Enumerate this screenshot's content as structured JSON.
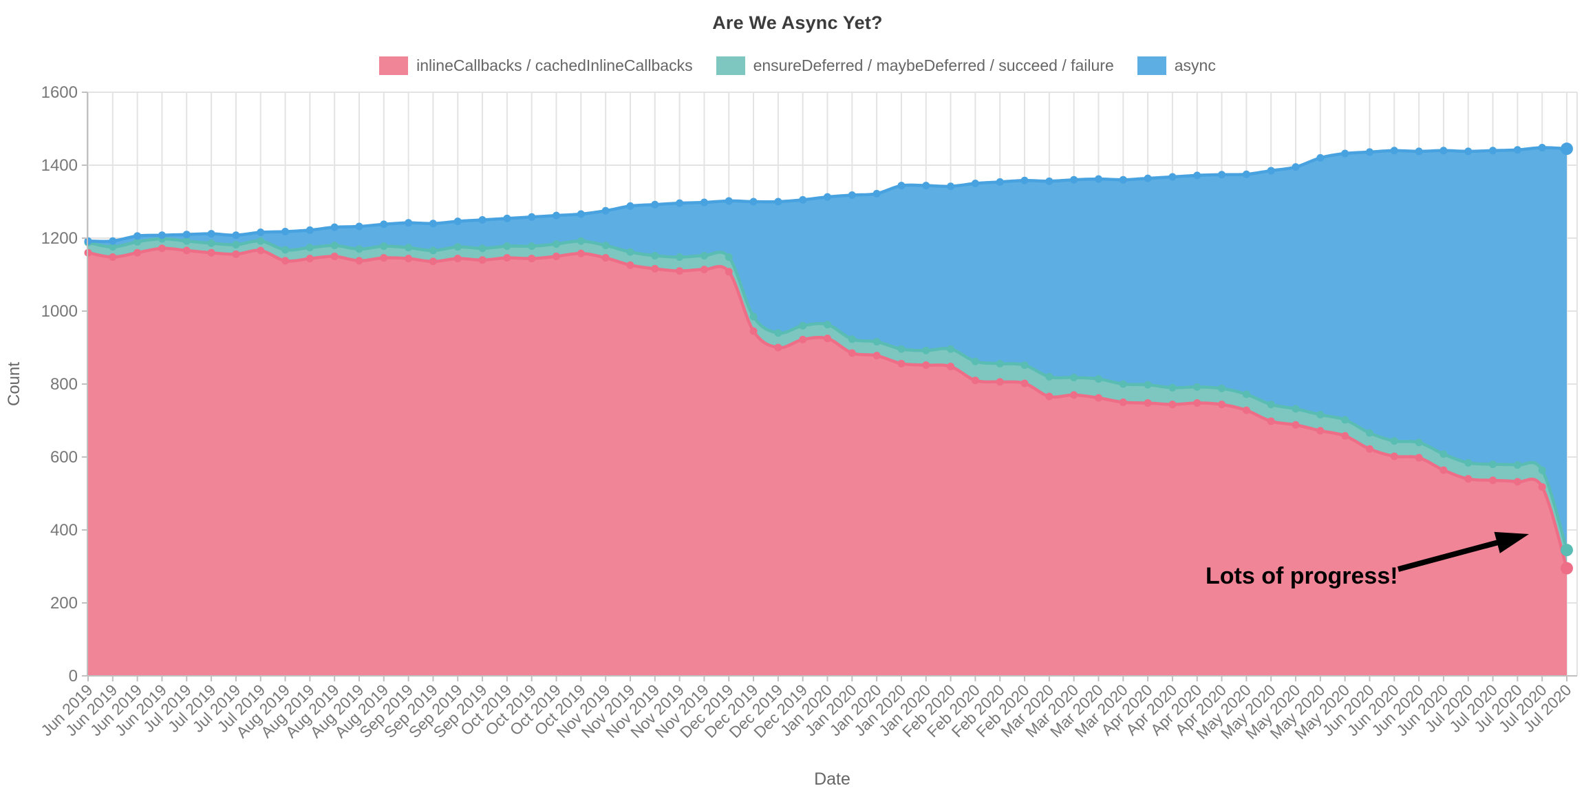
{
  "page": {
    "title": "Are We Async Yet?"
  },
  "axes": {
    "x": {
      "label": "Date"
    },
    "y": {
      "label": "Count",
      "ticks": [
        "0",
        "200",
        "400",
        "600",
        "800",
        "1000",
        "1200",
        "1400",
        "1600"
      ]
    }
  },
  "annotation": {
    "text": "Lots of progress!"
  },
  "legend": {
    "items": [
      {
        "label": "inlineCallbacks / cachedInlineCallbacks",
        "fill": "#f08598",
        "stroke": "#ee6e87"
      },
      {
        "label": "ensureDeferred / maybeDeferred / succeed / failure",
        "fill": "#7ec7c1",
        "stroke": "#5abdb3"
      },
      {
        "label": "async",
        "fill": "#5daee3",
        "stroke": "#47a2df"
      }
    ]
  },
  "colors": {
    "grid": "#e3e3e3",
    "axis_line": "#c0c0c0",
    "tick_text": "#777777",
    "axis_title_text": "#666666",
    "chart_title_text": "#3c3c3c",
    "annotation": "#000000",
    "background": "#ffffff"
  },
  "chart_data": {
    "type": "area",
    "stacked": true,
    "title": "Are We Async Yet?",
    "xlabel": "Date",
    "ylabel": "Count",
    "ylim": [
      0,
      1600
    ],
    "ytick_step": 200,
    "grid": true,
    "legend_position": "top",
    "point_markers": true,
    "categories": [
      "Jun 2019",
      "Jun 2019",
      "Jun 2019",
      "Jun 2019",
      "Jul 2019",
      "Jul 2019",
      "Jul 2019",
      "Jul 2019",
      "Aug 2019",
      "Aug 2019",
      "Aug 2019",
      "Aug 2019",
      "Aug 2019",
      "Sep 2019",
      "Sep 2019",
      "Sep 2019",
      "Sep 2019",
      "Oct 2019",
      "Oct 2019",
      "Oct 2019",
      "Oct 2019",
      "Nov 2019",
      "Nov 2019",
      "Nov 2019",
      "Nov 2019",
      "Nov 2019",
      "Dec 2019",
      "Dec 2019",
      "Dec 2019",
      "Dec 2019",
      "Jan 2020",
      "Jan 2020",
      "Jan 2020",
      "Jan 2020",
      "Jan 2020",
      "Feb 2020",
      "Feb 2020",
      "Feb 2020",
      "Feb 2020",
      "Mar 2020",
      "Mar 2020",
      "Mar 2020",
      "Mar 2020",
      "Apr 2020",
      "Apr 2020",
      "Apr 2020",
      "Apr 2020",
      "May 2020",
      "May 2020",
      "May 2020",
      "May 2020",
      "May 2020",
      "Jun 2020",
      "Jun 2020",
      "Jun 2020",
      "Jun 2020",
      "Jul 2020",
      "Jul 2020",
      "Jul 2020",
      "Jul 2020",
      "Jul 2020"
    ],
    "series": [
      {
        "name": "inlineCallbacks / cachedInlineCallbacks",
        "values": [
          1160,
          1148,
          1160,
          1172,
          1166,
          1160,
          1156,
          1166,
          1138,
          1144,
          1150,
          1138,
          1146,
          1144,
          1136,
          1144,
          1140,
          1146,
          1144,
          1150,
          1158,
          1146,
          1126,
          1116,
          1110,
          1114,
          1108,
          945,
          900,
          922,
          925,
          885,
          878,
          856,
          852,
          848,
          810,
          806,
          802,
          766,
          770,
          762,
          750,
          748,
          744,
          748,
          744,
          728,
          698,
          688,
          672,
          658,
          622,
          602,
          598,
          564,
          540,
          536,
          532,
          518,
          295
        ]
      },
      {
        "name": "ensureDeferred / maybeDeferred / succeed / failure",
        "values": [
          28,
          28,
          30,
          26,
          26,
          26,
          26,
          26,
          30,
          30,
          30,
          32,
          32,
          30,
          30,
          32,
          32,
          32,
          34,
          34,
          34,
          34,
          36,
          36,
          38,
          38,
          40,
          40,
          40,
          38,
          38,
          38,
          38,
          40,
          40,
          48,
          52,
          50,
          50,
          54,
          48,
          52,
          50,
          50,
          46,
          44,
          44,
          44,
          46,
          44,
          44,
          44,
          44,
          42,
          42,
          44,
          44,
          44,
          46,
          46,
          50
        ]
      },
      {
        "name": "async",
        "values": [
          4,
          16,
          16,
          10,
          18,
          26,
          26,
          24,
          50,
          48,
          50,
          62,
          60,
          68,
          74,
          70,
          78,
          76,
          80,
          78,
          74,
          95,
          126,
          140,
          148,
          146,
          154,
          315,
          360,
          345,
          350,
          395,
          406,
          448,
          452,
          446,
          488,
          498,
          506,
          536,
          542,
          548,
          560,
          566,
          578,
          580,
          586,
          603,
          641,
          663,
          704,
          730,
          770,
          796,
          798,
          832,
          854,
          860,
          864,
          884,
          1100
        ]
      }
    ],
    "annotations": [
      {
        "text": "Lots of progress!",
        "note": "arrow points at steep final drop of inlineCallbacks series"
      }
    ]
  }
}
